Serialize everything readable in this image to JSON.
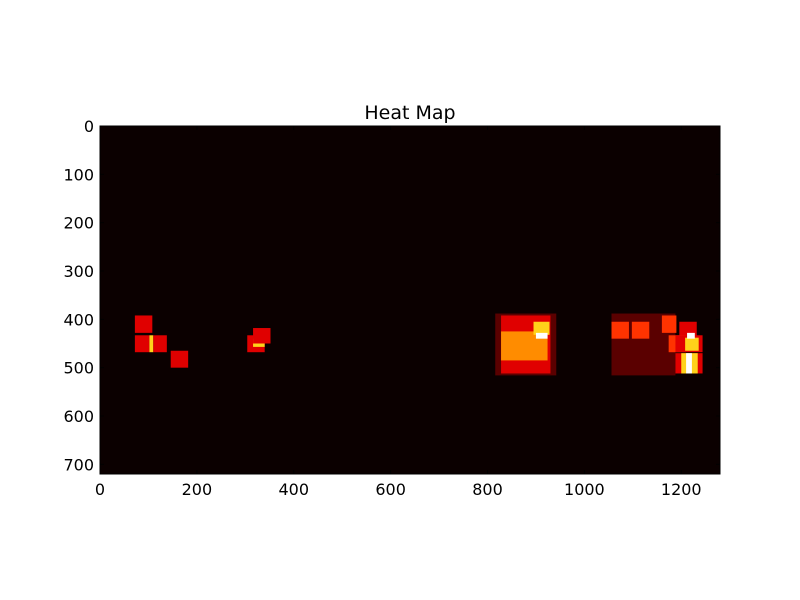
{
  "chart_data": {
    "type": "heatmap",
    "title": "Heat Map",
    "xlabel": "",
    "ylabel": "",
    "xlim": [
      0,
      1280
    ],
    "ylim": [
      720,
      0
    ],
    "x_ticks": [
      0,
      200,
      400,
      600,
      800,
      1000,
      1200
    ],
    "y_ticks": [
      0,
      100,
      200,
      300,
      400,
      500,
      600,
      700
    ],
    "colormap": "hot",
    "colormap_stops": [
      "#0b0000",
      "#5a0000",
      "#e00000",
      "#ff3300",
      "#ff8c00",
      "#ffd21a",
      "#ffffff"
    ],
    "background_value": 0,
    "max_value": 6,
    "cells": [
      {
        "x0": 72,
        "x1": 108,
        "y0": 392,
        "y1": 428,
        "value": 2
      },
      {
        "x0": 72,
        "x1": 102,
        "y0": 433,
        "y1": 468,
        "value": 2
      },
      {
        "x0": 102,
        "x1": 110,
        "y0": 433,
        "y1": 468,
        "value": 5
      },
      {
        "x0": 110,
        "x1": 138,
        "y0": 433,
        "y1": 468,
        "value": 2
      },
      {
        "x0": 146,
        "x1": 182,
        "y0": 465,
        "y1": 500,
        "value": 2
      },
      {
        "x0": 304,
        "x1": 340,
        "y0": 433,
        "y1": 468,
        "value": 2
      },
      {
        "x0": 316,
        "x1": 340,
        "y0": 440,
        "y1": 457,
        "value": 5
      },
      {
        "x0": 316,
        "x1": 352,
        "y0": 418,
        "y1": 450,
        "value": 2
      },
      {
        "x0": 816,
        "x1": 942,
        "y0": 388,
        "y1": 516,
        "value": 1
      },
      {
        "x0": 828,
        "x1": 930,
        "y0": 392,
        "y1": 512,
        "value": 2
      },
      {
        "x0": 828,
        "x1": 924,
        "y0": 425,
        "y1": 485,
        "value": 4
      },
      {
        "x0": 895,
        "x1": 928,
        "y0": 405,
        "y1": 432,
        "value": 5
      },
      {
        "x0": 900,
        "x1": 924,
        "y0": 428,
        "y1": 440,
        "value": 6
      },
      {
        "x0": 1056,
        "x1": 1188,
        "y0": 388,
        "y1": 516,
        "value": 1
      },
      {
        "x0": 1056,
        "x1": 1092,
        "y0": 405,
        "y1": 440,
        "value": 3
      },
      {
        "x0": 1098,
        "x1": 1134,
        "y0": 405,
        "y1": 440,
        "value": 3
      },
      {
        "x0": 1160,
        "x1": 1190,
        "y0": 392,
        "y1": 428,
        "value": 3
      },
      {
        "x0": 1196,
        "x1": 1232,
        "y0": 405,
        "y1": 440,
        "value": 2
      },
      {
        "x0": 1174,
        "x1": 1210,
        "y0": 433,
        "y1": 468,
        "value": 3
      },
      {
        "x0": 1188,
        "x1": 1244,
        "y0": 433,
        "y1": 468,
        "value": 2
      },
      {
        "x0": 1208,
        "x1": 1236,
        "y0": 438,
        "y1": 465,
        "value": 5
      },
      {
        "x0": 1212,
        "x1": 1228,
        "y0": 428,
        "y1": 440,
        "value": 6
      },
      {
        "x0": 1188,
        "x1": 1244,
        "y0": 470,
        "y1": 512,
        "value": 2
      },
      {
        "x0": 1200,
        "x1": 1234,
        "y0": 470,
        "y1": 512,
        "value": 5
      },
      {
        "x0": 1210,
        "x1": 1222,
        "y0": 470,
        "y1": 512,
        "value": 6
      }
    ]
  }
}
